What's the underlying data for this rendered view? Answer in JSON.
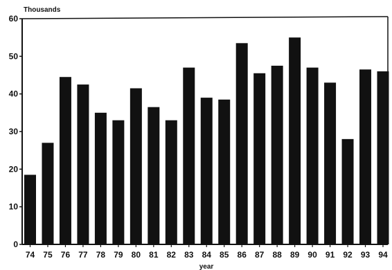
{
  "chart_data": {
    "type": "bar",
    "title": "",
    "ylabel": "Thousands",
    "xlabel": "year",
    "ylim": [
      0,
      60
    ],
    "yticks": [
      0,
      10,
      20,
      30,
      40,
      50,
      60
    ],
    "grid": false,
    "categories": [
      "74",
      "75",
      "76",
      "77",
      "78",
      "79",
      "80",
      "81",
      "82",
      "83",
      "84",
      "85",
      "86",
      "87",
      "88",
      "89",
      "90",
      "91",
      "92",
      "93",
      "94"
    ],
    "values": [
      18.5,
      27,
      44.5,
      42.5,
      35,
      33,
      41.5,
      36.5,
      33,
      47,
      39,
      38.5,
      53.5,
      45.5,
      47.5,
      55,
      47,
      43,
      28,
      46.5,
      46
    ],
    "bar_color": "#111111"
  }
}
